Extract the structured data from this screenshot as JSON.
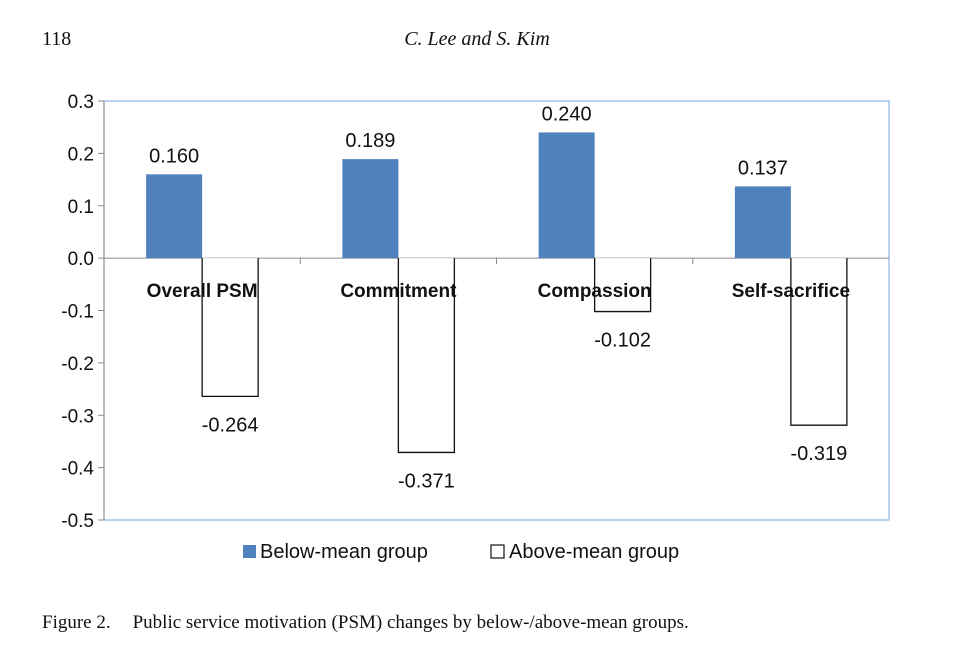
{
  "header": {
    "page_number": "118",
    "authors": "C. Lee and S. Kim"
  },
  "caption": {
    "label": "Figure 2.",
    "text": "Public service motivation (PSM) changes by below-/above-mean groups."
  },
  "colors": {
    "below_fill": "#4F81BD",
    "above_fill": "#ffffff",
    "above_stroke": "#111111",
    "plot_border": "#8EB4E3",
    "axis": "#8a8a8a"
  },
  "chart_data": {
    "type": "bar",
    "categories": [
      "Overall PSM",
      "Commitment",
      "Compassion",
      "Self-sacrifice"
    ],
    "series": [
      {
        "name": "Below-mean group",
        "values": [
          0.16,
          0.189,
          0.24,
          0.137
        ],
        "labels": [
          "0.160",
          "0.189",
          "0.240",
          "0.137"
        ]
      },
      {
        "name": "Above-mean group",
        "values": [
          -0.264,
          -0.371,
          -0.102,
          -0.319
        ],
        "labels": [
          "-0.264",
          "-0.371",
          "-0.102",
          "-0.319"
        ]
      }
    ],
    "ylim": [
      -0.5,
      0.3
    ],
    "yticks": [
      "0.3",
      "0.2",
      "0.1",
      "0.0",
      "-0.1",
      "-0.2",
      "-0.3",
      "-0.4",
      "-0.5"
    ],
    "ytick_values": [
      0.3,
      0.2,
      0.1,
      0.0,
      -0.1,
      -0.2,
      -0.3,
      -0.4,
      -0.5
    ],
    "grid": false,
    "legend": "bottom",
    "xlabel": "",
    "ylabel": "",
    "title": ""
  }
}
